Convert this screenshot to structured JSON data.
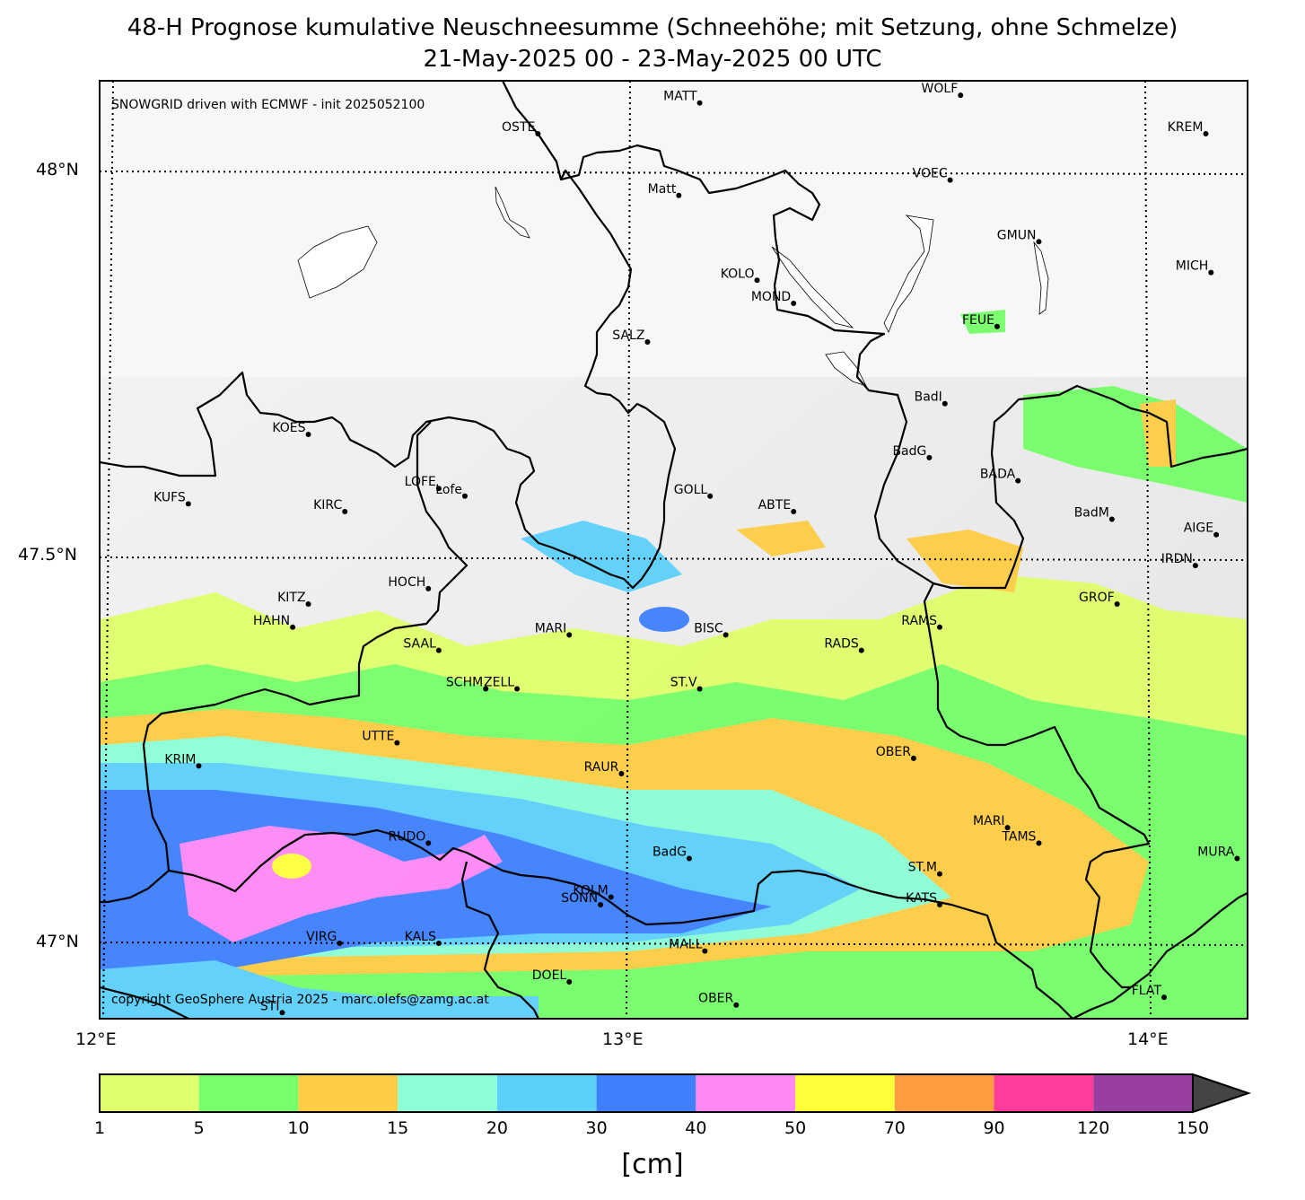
{
  "title": {
    "line1": "48-H Prognose kumulative Neuschneesumme (Schneehöhe; mit Setzung, ohne Schmelze)",
    "line2": "21-May-2025 00 - 23-May-2025 00 UTC"
  },
  "notes": {
    "model": "SNOWGRID driven with ECMWF - init 2025052100",
    "copyright": "copyright GeoSphere Austria 2025 - marc.olefs@zamg.ac.at"
  },
  "axes": {
    "lat_labels": [
      "48°N",
      "47.5°N",
      "47°N"
    ],
    "lon_labels": [
      "12°E",
      "13°E",
      "14°E"
    ]
  },
  "colorbar": {
    "unit": "[cm]",
    "ticks": [
      "1",
      "5",
      "10",
      "15",
      "20",
      "30",
      "40",
      "50",
      "70",
      "90",
      "120",
      "150"
    ],
    "colors": [
      "#e0ff6c",
      "#76ff6a",
      "#ffcc44",
      "#8cffd6",
      "#5cd0fa",
      "#3e80ff",
      "#ff88f6",
      "#ffff3c",
      "#ff9c3e",
      "#ff3c9c",
      "#9a3ea0"
    ],
    "extend_color": "#444444"
  },
  "stations": [
    {
      "name": "MATT",
      "lon": 13.15,
      "lat": 48.09
    },
    {
      "name": "WOLF",
      "lon": 13.65,
      "lat": 48.1
    },
    {
      "name": "KREM",
      "lon": 14.12,
      "lat": 48.05
    },
    {
      "name": "OSTE",
      "lon": 12.84,
      "lat": 48.05
    },
    {
      "name": "VOEC",
      "lon": 13.63,
      "lat": 47.99
    },
    {
      "name": "Matt",
      "lon": 13.11,
      "lat": 47.97
    },
    {
      "name": "GMUN",
      "lon": 13.8,
      "lat": 47.91
    },
    {
      "name": "MICH",
      "lon": 14.13,
      "lat": 47.87
    },
    {
      "name": "KOLO",
      "lon": 13.26,
      "lat": 47.86
    },
    {
      "name": "MOND",
      "lon": 13.33,
      "lat": 47.83
    },
    {
      "name": "FEUE",
      "lon": 13.72,
      "lat": 47.8
    },
    {
      "name": "SALZ",
      "lon": 13.05,
      "lat": 47.78
    },
    {
      "name": "BadI",
      "lon": 13.62,
      "lat": 47.7
    },
    {
      "name": "KOES",
      "lon": 12.4,
      "lat": 47.66
    },
    {
      "name": "BadG",
      "lon": 13.59,
      "lat": 47.63
    },
    {
      "name": "BADA",
      "lon": 13.76,
      "lat": 47.6
    },
    {
      "name": "LOFE",
      "lon": 12.65,
      "lat": 47.59
    },
    {
      "name": "Lofe",
      "lon": 12.7,
      "lat": 47.58
    },
    {
      "name": "GOLL",
      "lon": 13.17,
      "lat": 47.58
    },
    {
      "name": "KUFS",
      "lon": 12.17,
      "lat": 47.57
    },
    {
      "name": "KIRC",
      "lon": 12.47,
      "lat": 47.56
    },
    {
      "name": "ABTE",
      "lon": 13.33,
      "lat": 47.56
    },
    {
      "name": "BadM",
      "lon": 13.94,
      "lat": 47.55
    },
    {
      "name": "AIGE",
      "lon": 14.14,
      "lat": 47.53
    },
    {
      "name": "IRDN",
      "lon": 14.1,
      "lat": 47.49
    },
    {
      "name": "HOCH",
      "lon": 12.63,
      "lat": 47.46
    },
    {
      "name": "KITZ",
      "lon": 12.4,
      "lat": 47.44
    },
    {
      "name": "GROF",
      "lon": 13.95,
      "lat": 47.44
    },
    {
      "name": "HAHN",
      "lon": 12.37,
      "lat": 47.41
    },
    {
      "name": "RAMS",
      "lon": 13.61,
      "lat": 47.41
    },
    {
      "name": "MARI",
      "lon": 12.9,
      "lat": 47.4
    },
    {
      "name": "BISC",
      "lon": 13.2,
      "lat": 47.4
    },
    {
      "name": "SAAL",
      "lon": 12.65,
      "lat": 47.38
    },
    {
      "name": "RADS",
      "lon": 13.46,
      "lat": 47.38
    },
    {
      "name": "SCHM",
      "lon": 12.74,
      "lat": 47.33
    },
    {
      "name": "ZELL",
      "lon": 12.8,
      "lat": 47.33
    },
    {
      "name": "ST.V",
      "lon": 13.15,
      "lat": 47.33
    },
    {
      "name": "UTTE",
      "lon": 12.57,
      "lat": 47.26
    },
    {
      "name": "OBER",
      "lon": 13.56,
      "lat": 47.24
    },
    {
      "name": "KRIM",
      "lon": 12.19,
      "lat": 47.23
    },
    {
      "name": "RAUR",
      "lon": 13.0,
      "lat": 47.22
    },
    {
      "name": "MARI",
      "lon": 13.74,
      "lat": 47.15
    },
    {
      "name": "RUDO",
      "lon": 12.63,
      "lat": 47.13
    },
    {
      "name": "TAMS",
      "lon": 13.8,
      "lat": 47.13
    },
    {
      "name": "BadG",
      "lon": 13.13,
      "lat": 47.11
    },
    {
      "name": "MURA",
      "lon": 14.18,
      "lat": 47.11
    },
    {
      "name": "ST.M",
      "lon": 13.61,
      "lat": 47.09
    },
    {
      "name": "KOLM",
      "lon": 12.98,
      "lat": 47.06
    },
    {
      "name": "SONN",
      "lon": 12.96,
      "lat": 47.05
    },
    {
      "name": "KATS",
      "lon": 13.61,
      "lat": 47.05
    },
    {
      "name": "VIRG",
      "lon": 12.46,
      "lat": 47.0
    },
    {
      "name": "KALS",
      "lon": 12.65,
      "lat": 47.0
    },
    {
      "name": "MALL",
      "lon": 13.16,
      "lat": 46.99
    },
    {
      "name": "DOEL",
      "lon": 12.9,
      "lat": 46.95
    },
    {
      "name": "FLAT",
      "lon": 14.04,
      "lat": 46.93
    },
    {
      "name": "OBER",
      "lon": 13.22,
      "lat": 46.92
    },
    {
      "name": "STI",
      "lon": 12.35,
      "lat": 46.91
    }
  ]
}
